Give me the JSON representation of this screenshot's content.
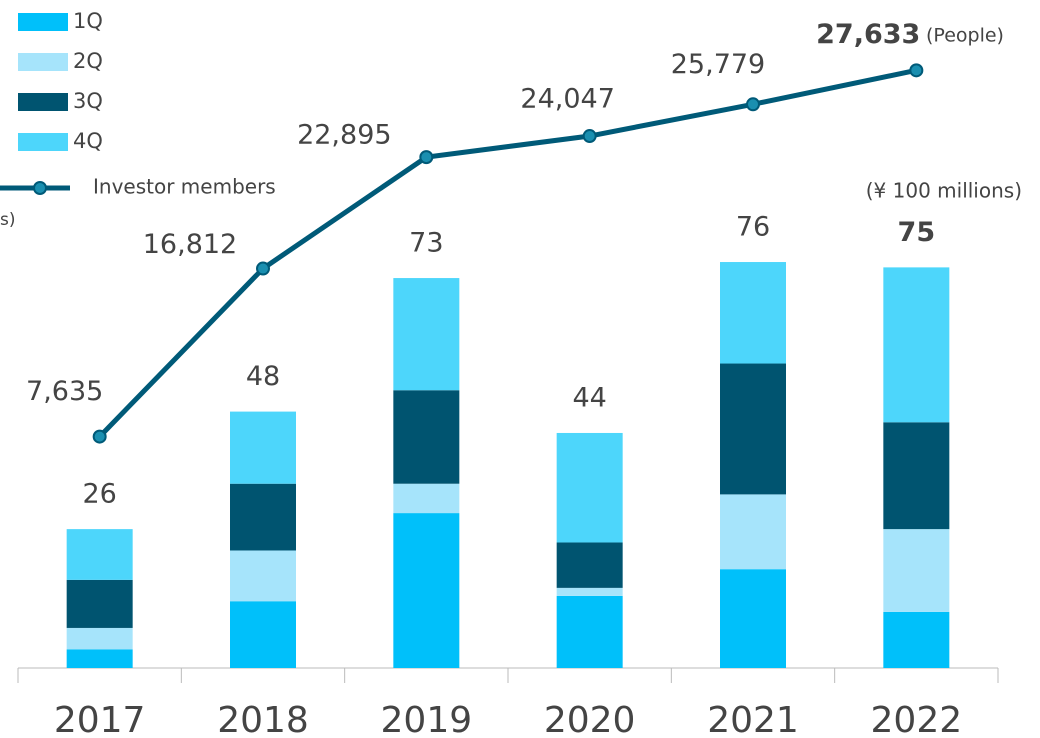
{
  "chart_data": {
    "type": "bar",
    "categories": [
      "2017",
      "2018",
      "2019",
      "2020",
      "2021",
      "2022"
    ],
    "series": [
      {
        "name": "1Q",
        "color": "#00c0fa",
        "values": [
          3.5,
          12.5,
          29,
          13.5,
          18.5,
          10.5
        ]
      },
      {
        "name": "2Q",
        "color": "#a6e4fb",
        "values": [
          4,
          9.5,
          5.5,
          1.5,
          14,
          15.5
        ]
      },
      {
        "name": "3Q",
        "color": "#005470",
        "values": [
          9,
          12.5,
          17.5,
          8.5,
          24.5,
          20
        ]
      },
      {
        "name": "4Q",
        "color": "#4dd6fb",
        "values": [
          9.5,
          13.5,
          21,
          20.5,
          19,
          29
        ]
      },
      {
        "name": "Investor members",
        "type": "line",
        "axis": "y2",
        "color": "#005a78",
        "values": [
          7635,
          16812,
          22895,
          24047,
          25779,
          27633
        ],
        "value_labels": [
          "7,635",
          "16,812",
          "22,895",
          "24,047",
          "25,779",
          "27,633"
        ]
      }
    ],
    "totals": [
      26,
      48,
      73,
      44,
      76,
      75
    ],
    "ylim": [
      0,
      120
    ],
    "y2lim": [
      -5000,
      30000
    ],
    "ylabel": "s)",
    "y_unit": "(¥ 100 millions)",
    "y2_unit": "(People)",
    "legend": "top-left"
  }
}
